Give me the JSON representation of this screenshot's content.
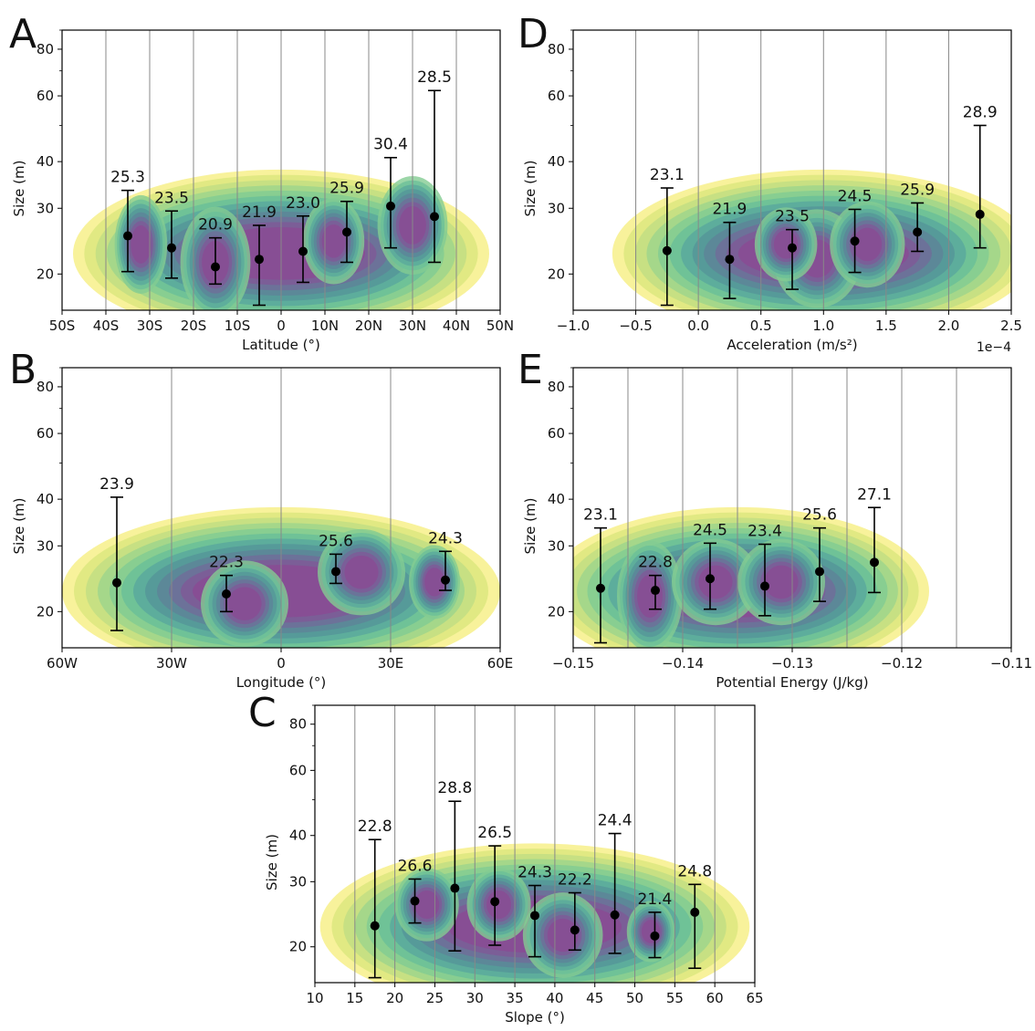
{
  "colors": {
    "kde_levels": [
      "#f7f08a",
      "#dde77f",
      "#c2de84",
      "#9fd58c",
      "#83cc92",
      "#6bbf98",
      "#5aa99c",
      "#559699",
      "#5d8598",
      "#6e6f99",
      "#7e5a97",
      "#8a4b93"
    ],
    "gridline": "#888888",
    "marker": "#000000"
  },
  "chart_data": [
    {
      "panel": "A",
      "type": "scatter",
      "xlabel": "Latitude (°)",
      "ylabel": "Size (m)",
      "xlim": [
        -50,
        50
      ],
      "ylim": [
        16,
        90
      ],
      "yscale": "log",
      "xticks": [
        -50,
        -40,
        -30,
        -20,
        -10,
        0,
        10,
        20,
        30,
        40,
        50
      ],
      "xtick_labels": [
        "50S",
        "40S",
        "30S",
        "20S",
        "10S",
        "0",
        "10N",
        "20N",
        "30N",
        "40N",
        "50N"
      ],
      "yticks": [
        20,
        30,
        40,
        60,
        80
      ],
      "ytick_labels": [
        "20",
        "30",
        "40",
        "60",
        "80"
      ],
      "gridlines_x": [
        -40,
        -30,
        -20,
        -10,
        0,
        10,
        20,
        30,
        40
      ],
      "points": [
        {
          "x": -35,
          "y": 25.3,
          "low": 20.3,
          "high": 33.5,
          "label": "25.3"
        },
        {
          "x": -25,
          "y": 23.5,
          "low": 19.5,
          "high": 29.5,
          "label": "23.5"
        },
        {
          "x": -15,
          "y": 20.9,
          "low": 18.8,
          "high": 25.0,
          "label": "20.9"
        },
        {
          "x": -5,
          "y": 21.9,
          "low": 16.5,
          "high": 27.0,
          "label": "21.9"
        },
        {
          "x": 5,
          "y": 23.0,
          "low": 19.0,
          "high": 28.6,
          "label": "23.0"
        },
        {
          "x": 15,
          "y": 25.9,
          "low": 21.5,
          "high": 31.3,
          "label": "25.9"
        },
        {
          "x": 25,
          "y": 30.4,
          "low": 23.5,
          "high": 41.0,
          "label": "30.4"
        },
        {
          "x": 35,
          "y": 28.5,
          "low": 21.5,
          "high": 62.0,
          "label": "28.5"
        }
      ],
      "kde_blobs": [
        {
          "cx": -15,
          "cy": 21.5,
          "rx": 8,
          "ry": 0.09
        },
        {
          "cx": 12,
          "cy": 24.5,
          "rx": 7,
          "ry": 0.07
        },
        {
          "cx": -32,
          "cy": 24,
          "rx": 6,
          "ry": 0.08
        },
        {
          "cx": 30,
          "cy": 27,
          "rx": 8,
          "ry": 0.08
        }
      ]
    },
    {
      "panel": "B",
      "type": "scatter",
      "xlabel": "Longitude (°)",
      "ylabel": "Size (m)",
      "xlim": [
        -60,
        60
      ],
      "ylim": [
        16,
        90
      ],
      "yscale": "log",
      "xticks": [
        -60,
        -30,
        0,
        30,
        60
      ],
      "xtick_labels": [
        "60W",
        "30W",
        "0",
        "30E",
        "60E"
      ],
      "yticks": [
        20,
        30,
        40,
        60,
        80
      ],
      "ytick_labels": [
        "20",
        "30",
        "40",
        "60",
        "80"
      ],
      "gridlines_x": [
        -30,
        0,
        30
      ],
      "points": [
        {
          "x": -45,
          "y": 23.9,
          "low": 17.8,
          "high": 40.5,
          "label": "23.9"
        },
        {
          "x": -15,
          "y": 22.3,
          "low": 20.0,
          "high": 25.0,
          "label": "22.3"
        },
        {
          "x": 15,
          "y": 25.6,
          "low": 23.8,
          "high": 28.5,
          "label": "25.6"
        },
        {
          "x": 45,
          "y": 24.3,
          "low": 22.8,
          "high": 29.0,
          "label": "24.3"
        }
      ],
      "kde_blobs": [
        {
          "cx": -10,
          "cy": 21,
          "rx": 12,
          "ry": 0.07
        },
        {
          "cx": 22,
          "cy": 25.5,
          "rx": 12,
          "ry": 0.07
        },
        {
          "cx": 42,
          "cy": 24,
          "rx": 7,
          "ry": 0.06
        }
      ]
    },
    {
      "panel": "C",
      "type": "scatter",
      "xlabel": "Slope (°)",
      "ylabel": "Size (m)",
      "xlim": [
        10,
        65
      ],
      "ylim": [
        16,
        90
      ],
      "yscale": "log",
      "xticks": [
        10,
        15,
        20,
        25,
        30,
        35,
        40,
        45,
        50,
        55,
        60,
        65
      ],
      "xtick_labels": [
        "10",
        "15",
        "20",
        "25",
        "30",
        "35",
        "40",
        "45",
        "50",
        "55",
        "60",
        "65"
      ],
      "yticks": [
        20,
        30,
        40,
        60,
        80
      ],
      "ytick_labels": [
        "20",
        "30",
        "40",
        "60",
        "80"
      ],
      "gridlines_x": [
        15,
        20,
        25,
        30,
        35,
        40,
        45,
        50,
        55,
        60
      ],
      "points": [
        {
          "x": 17.5,
          "y": 22.8,
          "low": 16.5,
          "high": 39.0,
          "label": "22.8"
        },
        {
          "x": 22.5,
          "y": 26.6,
          "low": 23.2,
          "high": 30.5,
          "label": "26.6"
        },
        {
          "x": 27.5,
          "y": 28.8,
          "low": 19.5,
          "high": 49.5,
          "label": "28.8"
        },
        {
          "x": 32.5,
          "y": 26.5,
          "low": 20.2,
          "high": 37.5,
          "label": "26.5"
        },
        {
          "x": 37.5,
          "y": 24.3,
          "low": 18.8,
          "high": 29.3,
          "label": "24.3"
        },
        {
          "x": 42.5,
          "y": 22.2,
          "low": 19.6,
          "high": 28.0,
          "label": "22.2"
        },
        {
          "x": 47.5,
          "y": 24.4,
          "low": 19.2,
          "high": 40.5,
          "label": "24.4"
        },
        {
          "x": 52.5,
          "y": 21.4,
          "low": 18.7,
          "high": 24.8,
          "label": "21.4"
        },
        {
          "x": 57.5,
          "y": 24.8,
          "low": 17.5,
          "high": 29.5,
          "label": "24.8"
        }
      ],
      "kde_blobs": [
        {
          "cx": 41,
          "cy": 21.5,
          "rx": 5,
          "ry": 0.07
        },
        {
          "cx": 24,
          "cy": 26,
          "rx": 4,
          "ry": 0.06
        },
        {
          "cx": 52,
          "cy": 22,
          "rx": 3,
          "ry": 0.05
        },
        {
          "cx": 33,
          "cy": 26,
          "rx": 4,
          "ry": 0.06
        }
      ]
    },
    {
      "panel": "D",
      "type": "scatter",
      "xlabel": "Acceleration (m/s²)",
      "x_offset_label": "1e−4",
      "ylabel": "Size (m)",
      "xlim": [
        -1.0,
        2.5
      ],
      "ylim": [
        16,
        90
      ],
      "yscale": "log",
      "xticks": [
        -1.0,
        -0.5,
        0.0,
        0.5,
        1.0,
        1.5,
        2.0,
        2.5
      ],
      "xtick_labels": [
        "−1.0",
        "−0.5",
        "0.0",
        "0.5",
        "1.0",
        "1.5",
        "2.0",
        "2.5"
      ],
      "yticks": [
        20,
        30,
        40,
        60,
        80
      ],
      "ytick_labels": [
        "20",
        "30",
        "40",
        "60",
        "80"
      ],
      "gridlines_x": [
        -0.5,
        0.0,
        0.5,
        1.0,
        1.5,
        2.0
      ],
      "points": [
        {
          "x": -0.25,
          "y": 23.1,
          "low": 16.5,
          "high": 34.0,
          "label": "23.1"
        },
        {
          "x": 0.25,
          "y": 21.9,
          "low": 17.2,
          "high": 27.5,
          "label": "21.9"
        },
        {
          "x": 0.75,
          "y": 23.5,
          "low": 18.2,
          "high": 26.3,
          "label": "23.5"
        },
        {
          "x": 1.25,
          "y": 24.5,
          "low": 20.2,
          "high": 29.8,
          "label": "24.5"
        },
        {
          "x": 1.75,
          "y": 25.9,
          "low": 23.0,
          "high": 31.0,
          "label": "25.9"
        },
        {
          "x": 2.25,
          "y": 28.9,
          "low": 23.5,
          "high": 50.0,
          "label": "28.9"
        }
      ],
      "kde_blobs": [
        {
          "cx": 0.95,
          "cy": 22,
          "rx": 0.35,
          "ry": 0.08
        },
        {
          "cx": 1.35,
          "cy": 24,
          "rx": 0.3,
          "ry": 0.07
        },
        {
          "cx": 0.7,
          "cy": 24,
          "rx": 0.25,
          "ry": 0.06
        }
      ]
    },
    {
      "panel": "E",
      "type": "scatter",
      "xlabel": "Potential Energy (J/kg)",
      "ylabel": "Size (m)",
      "xlim": [
        -0.15,
        -0.11
      ],
      "ylim": [
        16,
        90
      ],
      "yscale": "log",
      "xticks": [
        -0.15,
        -0.14,
        -0.13,
        -0.12,
        -0.11
      ],
      "xtick_labels": [
        "−0.15",
        "−0.14",
        "−0.13",
        "−0.12",
        "−0.11"
      ],
      "yticks": [
        20,
        30,
        40,
        60,
        80
      ],
      "ytick_labels": [
        "20",
        "30",
        "40",
        "60",
        "80"
      ],
      "gridlines_x": [
        -0.145,
        -0.14,
        -0.135,
        -0.13,
        -0.125,
        -0.12,
        -0.115
      ],
      "points": [
        {
          "x": -0.1475,
          "y": 23.1,
          "low": 16.5,
          "high": 33.5,
          "label": "23.1"
        },
        {
          "x": -0.1425,
          "y": 22.8,
          "low": 20.3,
          "high": 25.0,
          "label": "22.8"
        },
        {
          "x": -0.1375,
          "y": 24.5,
          "low": 20.3,
          "high": 30.5,
          "label": "24.5"
        },
        {
          "x": -0.1325,
          "y": 23.4,
          "low": 19.5,
          "high": 30.3,
          "label": "23.4"
        },
        {
          "x": -0.1275,
          "y": 25.6,
          "low": 21.3,
          "high": 33.5,
          "label": "25.6"
        },
        {
          "x": -0.1225,
          "y": 27.1,
          "low": 22.5,
          "high": 38.0,
          "label": "27.1"
        }
      ],
      "kde_blobs": [
        {
          "cx": -0.143,
          "cy": 22,
          "rx": 0.003,
          "ry": 0.09
        },
        {
          "cx": -0.137,
          "cy": 24,
          "rx": 0.004,
          "ry": 0.07
        },
        {
          "cx": -0.131,
          "cy": 24,
          "rx": 0.004,
          "ry": 0.07
        }
      ]
    }
  ]
}
